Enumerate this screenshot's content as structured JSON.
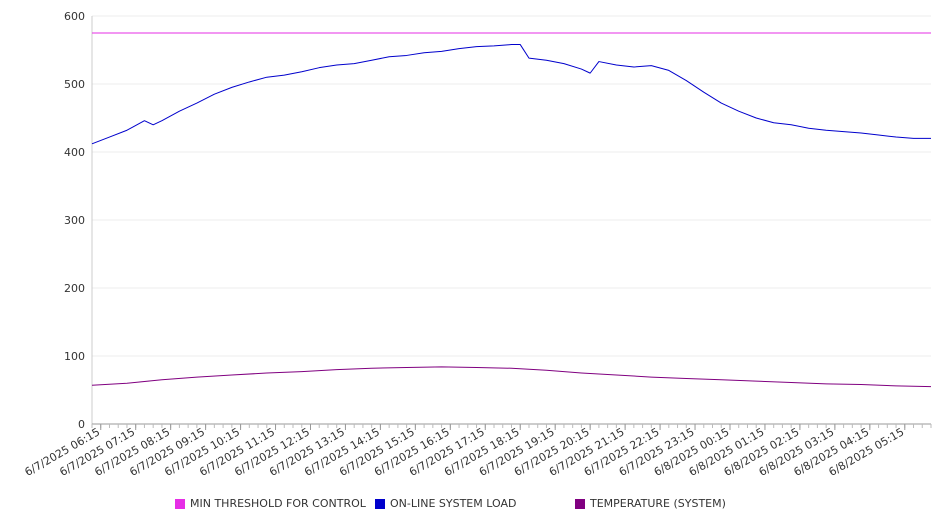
{
  "chart_data": {
    "type": "line",
    "title": "",
    "xlabel": "",
    "ylabel": "",
    "ylim": [
      0,
      600
    ],
    "yticks": [
      0,
      100,
      200,
      300,
      400,
      500,
      600
    ],
    "xlim": [
      "6/7/2025 06:00",
      "6/8/2025 06:00"
    ],
    "grid": true,
    "legend_position": "bottom",
    "x_tick_labels": [
      "6/7/2025 06:15",
      "6/7/2025 07:15",
      "6/7/2025 08:15",
      "6/7/2025 09:15",
      "6/7/2025 10:15",
      "6/7/2025 11:15",
      "6/7/2025 12:15",
      "6/7/2025 13:15",
      "6/7/2025 14:15",
      "6/7/2025 15:15",
      "6/7/2025 16:15",
      "6/7/2025 17:15",
      "6/7/2025 18:15",
      "6/7/2025 19:15",
      "6/7/2025 20:15",
      "6/7/2025 21:15",
      "6/7/2025 22:15",
      "6/7/2025 23:15",
      "6/8/2025 00:15",
      "6/8/2025 01:15",
      "6/8/2025 02:15",
      "6/8/2025 03:15",
      "6/8/2025 04:15",
      "6/8/2025 05:15"
    ],
    "series": [
      {
        "name": "MIN THRESHOLD FOR CONTROL",
        "color": "#e62ee6",
        "x": [
          "6/7/2025 06:00",
          "6/8/2025 06:00"
        ],
        "values": [
          575,
          575
        ]
      },
      {
        "name": "ON-LINE SYSTEM LOAD",
        "color": "#0000cc",
        "x": [
          "6/7/2025 06:00",
          "6/7/2025 06:30",
          "6/7/2025 07:00",
          "6/7/2025 07:30",
          "6/7/2025 07:45",
          "6/7/2025 08:00",
          "6/7/2025 08:30",
          "6/7/2025 09:00",
          "6/7/2025 09:30",
          "6/7/2025 10:00",
          "6/7/2025 10:30",
          "6/7/2025 11:00",
          "6/7/2025 11:30",
          "6/7/2025 12:00",
          "6/7/2025 12:30",
          "6/7/2025 13:00",
          "6/7/2025 13:30",
          "6/7/2025 14:00",
          "6/7/2025 14:30",
          "6/7/2025 15:00",
          "6/7/2025 15:30",
          "6/7/2025 16:00",
          "6/7/2025 16:30",
          "6/7/2025 17:00",
          "6/7/2025 17:30",
          "6/7/2025 18:00",
          "6/7/2025 18:15",
          "6/7/2025 18:30",
          "6/7/2025 19:00",
          "6/7/2025 19:30",
          "6/7/2025 20:00",
          "6/7/2025 20:15",
          "6/7/2025 20:30",
          "6/7/2025 21:00",
          "6/7/2025 21:30",
          "6/7/2025 22:00",
          "6/7/2025 22:30",
          "6/7/2025 23:00",
          "6/7/2025 23:30",
          "6/8/2025 00:00",
          "6/8/2025 00:30",
          "6/8/2025 01:00",
          "6/8/2025 01:30",
          "6/8/2025 02:00",
          "6/8/2025 02:30",
          "6/8/2025 03:00",
          "6/8/2025 03:30",
          "6/8/2025 04:00",
          "6/8/2025 04:30",
          "6/8/2025 05:00",
          "6/8/2025 05:30",
          "6/8/2025 06:00"
        ],
        "values": [
          412,
          422,
          432,
          446,
          440,
          446,
          460,
          472,
          485,
          495,
          503,
          510,
          513,
          518,
          524,
          528,
          530,
          535,
          540,
          542,
          546,
          548,
          552,
          555,
          556,
          558,
          558,
          538,
          535,
          530,
          522,
          516,
          533,
          528,
          525,
          527,
          520,
          505,
          488,
          472,
          460,
          450,
          443,
          440,
          435,
          432,
          430,
          428,
          425,
          422,
          420,
          420
        ]
      },
      {
        "name": "TEMPERATURE (SYSTEM)",
        "color": "#800080",
        "x": [
          "6/7/2025 06:00",
          "6/7/2025 07:00",
          "6/7/2025 08:00",
          "6/7/2025 09:00",
          "6/7/2025 10:00",
          "6/7/2025 11:00",
          "6/7/2025 12:00",
          "6/7/2025 13:00",
          "6/7/2025 14:00",
          "6/7/2025 15:00",
          "6/7/2025 16:00",
          "6/7/2025 17:00",
          "6/7/2025 18:00",
          "6/7/2025 19:00",
          "6/7/2025 20:00",
          "6/7/2025 21:00",
          "6/7/2025 22:00",
          "6/7/2025 23:00",
          "6/8/2025 00:00",
          "6/8/2025 01:00",
          "6/8/2025 02:00",
          "6/8/2025 03:00",
          "6/8/2025 04:00",
          "6/8/2025 05:00",
          "6/8/2025 06:00"
        ],
        "values": [
          57,
          60,
          65,
          69,
          72,
          75,
          77,
          80,
          82,
          83,
          84,
          83,
          82,
          79,
          75,
          72,
          69,
          67,
          65,
          63,
          61,
          59,
          58,
          56,
          55
        ]
      }
    ]
  }
}
